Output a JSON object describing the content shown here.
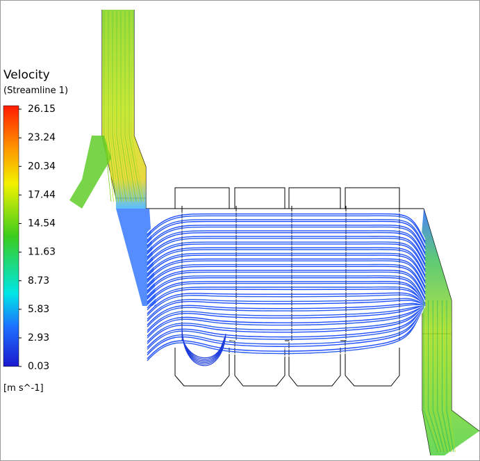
{
  "legend": {
    "title": "Velocity",
    "subtitle": "(Streamline 1)",
    "unit": "[m s^-1]",
    "ticks": [
      26.15,
      23.24,
      20.34,
      17.44,
      14.54,
      11.63,
      8.73,
      5.83,
      2.93,
      0.03
    ]
  }
}
